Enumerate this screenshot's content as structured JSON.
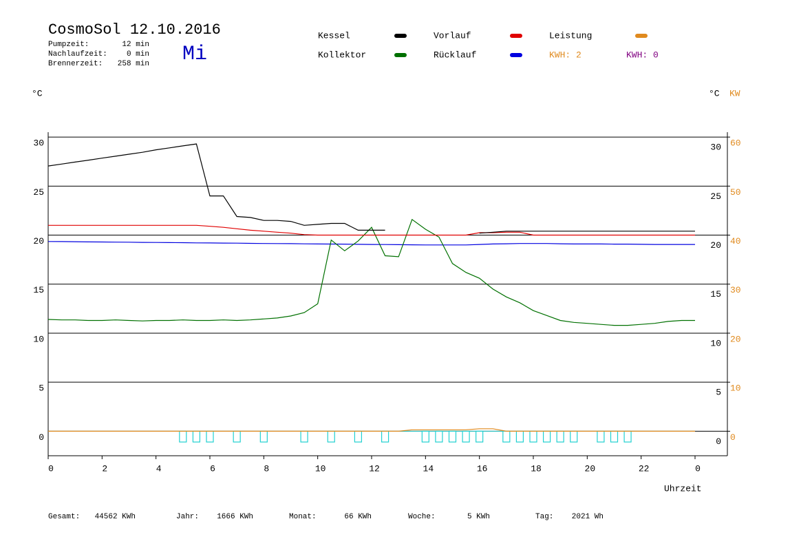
{
  "chart_data": {
    "type": "line",
    "title": "CosmoSol 12.10.2016",
    "day": "Mi",
    "info": [
      [
        "Pumpzeit:",
        "12 min"
      ],
      [
        "Nachlaufzeit:",
        "0 min"
      ],
      [
        "Brennerzeit:",
        "258 min"
      ]
    ],
    "ylabel": "°C",
    "y2label_left": "°C",
    "y2label": "KW",
    "xlabel": "Uhrzeit",
    "annotations": [
      {
        "text": "KWH: 2",
        "color": "#e08a1e"
      },
      {
        "text": "KWH: 0",
        "color": "#800080"
      }
    ],
    "footer": [
      [
        "Gesamt:",
        "44562 KWh"
      ],
      [
        "Jahr:",
        "1666 KWh"
      ],
      [
        "Monat:",
        "66 KWh"
      ],
      [
        "Woche:",
        "5 KWh"
      ],
      [
        "Tag:",
        "2021 Wh"
      ]
    ],
    "xlim": [
      0,
      25.2
    ],
    "xticks": [
      0,
      2,
      4,
      6,
      8,
      10,
      12,
      14,
      16,
      18,
      20,
      22,
      {
        "value": 24,
        "label": "0"
      }
    ],
    "ylim": [
      -2.5,
      30.5
    ],
    "yticks": [
      0,
      5,
      10,
      15,
      20,
      25,
      30
    ],
    "y2lim": [
      -5,
      61
    ],
    "y2ticks": [
      0,
      10,
      20,
      30,
      40,
      50,
      60
    ],
    "grid": true,
    "x": [
      0,
      0.5,
      1,
      1.5,
      2,
      2.5,
      3,
      3.5,
      4,
      4.5,
      5,
      5.5,
      6,
      6.5,
      7,
      7.5,
      8,
      8.5,
      9,
      9.5,
      10,
      10.5,
      11,
      11.5,
      12,
      12.5,
      13,
      13.5,
      14,
      14.5,
      15,
      15.5,
      16,
      16.5,
      17,
      17.5,
      18,
      18.5,
      19,
      19.5,
      20,
      20.5,
      21,
      21.5,
      22,
      22.5,
      23,
      23.5,
      24
    ],
    "series": [
      {
        "name": "Kessel",
        "color": "#000000",
        "values": [
          27.05,
          27.25,
          27.45,
          27.65,
          27.85,
          28.05,
          28.25,
          28.45,
          28.7,
          28.9,
          29.1,
          29.3,
          24.0,
          24.0,
          21.9,
          21.8,
          21.5,
          21.5,
          21.4,
          21.0,
          21.1,
          21.2,
          21.2,
          20.5,
          20.5,
          20.5,
          null,
          null,
          null,
          null,
          null,
          null,
          20.2,
          20.3,
          20.4,
          20.4,
          20.4,
          20.4,
          20.4,
          20.4,
          20.4,
          20.4,
          20.4,
          20.4,
          20.4,
          20.4,
          20.4,
          20.4,
          20.4
        ]
      },
      {
        "name": "Vorlauf",
        "color": "#e00000",
        "values": [
          21.0,
          21.0,
          21.0,
          21.0,
          21.0,
          21.0,
          21.0,
          21.0,
          21.0,
          21.0,
          21.0,
          21.0,
          20.9,
          20.8,
          20.65,
          20.5,
          20.4,
          20.3,
          20.2,
          20.05,
          20.0,
          20.0,
          20.0,
          20.0,
          20.0,
          20.0,
          20.0,
          20.0,
          20.0,
          20.0,
          20.0,
          20.0,
          20.25,
          20.25,
          20.3,
          20.3,
          20.0,
          20.0,
          20.0,
          20.0,
          20.0,
          20.0,
          20.0,
          20.0,
          20.0,
          20.0,
          20.0,
          20.0,
          20.0
        ]
      },
      {
        "name": "Leistung",
        "color": "#e08a1e",
        "axis": "y2",
        "values": [
          0,
          0,
          0,
          0,
          0,
          0,
          0,
          0,
          0,
          0,
          0,
          0,
          0,
          0,
          0,
          0,
          0,
          0,
          0,
          0,
          0,
          0,
          0,
          0,
          0,
          0,
          0,
          0.3,
          0.3,
          0.3,
          0.3,
          0.3,
          0.5,
          0.5,
          0,
          0,
          0,
          0,
          0,
          0,
          0,
          0,
          0,
          0,
          0,
          0,
          0,
          0,
          0
        ]
      },
      {
        "name": "Kollektor",
        "color": "#007000",
        "values": [
          11.4,
          11.35,
          11.35,
          11.3,
          11.3,
          11.35,
          11.3,
          11.25,
          11.3,
          11.3,
          11.35,
          11.3,
          11.3,
          11.35,
          11.3,
          11.35,
          11.45,
          11.55,
          11.75,
          12.1,
          13.0,
          19.5,
          18.4,
          19.4,
          20.8,
          17.9,
          17.8,
          21.6,
          20.6,
          19.8,
          17.1,
          16.2,
          15.6,
          14.5,
          13.7,
          13.1,
          12.3,
          11.8,
          11.3,
          11.1,
          11.0,
          10.9,
          10.8,
          10.8,
          10.9,
          11.0,
          11.2,
          11.3,
          11.3
        ]
      },
      {
        "name": "Rücklauf",
        "color": "#0000e0",
        "values": [
          19.35,
          19.34,
          19.33,
          19.31,
          19.3,
          19.29,
          19.28,
          19.26,
          19.25,
          19.24,
          19.23,
          19.21,
          19.2,
          19.19,
          19.18,
          19.16,
          19.15,
          19.14,
          19.13,
          19.11,
          19.1,
          19.09,
          19.08,
          19.06,
          19.05,
          19.04,
          19.03,
          19.01,
          19.0,
          19.0,
          19.0,
          19.0,
          19.05,
          19.1,
          19.12,
          19.15,
          19.15,
          19.15,
          19.12,
          19.1,
          19.1,
          19.1,
          19.08,
          19.08,
          19.06,
          19.05,
          19.05,
          19.05,
          19.05
        ]
      },
      {
        "color": "#20d0d0",
        "values": [
          0,
          0,
          0,
          0,
          0,
          0,
          0,
          0,
          0,
          0,
          -1.1,
          -1.1,
          -1.1,
          0,
          -1.1,
          0,
          -1.1,
          0,
          0,
          -1.1,
          0,
          -1.1,
          0,
          -1.1,
          0,
          -1.1,
          0,
          0,
          -1.1,
          -1.1,
          -1.1,
          -1.1,
          -1.1,
          0,
          -1.1,
          -1.1,
          -1.1,
          -1.1,
          -1.1,
          -1.1,
          0,
          -1.1,
          -1.1,
          -1.1,
          0,
          0,
          0,
          0,
          0
        ]
      }
    ]
  }
}
